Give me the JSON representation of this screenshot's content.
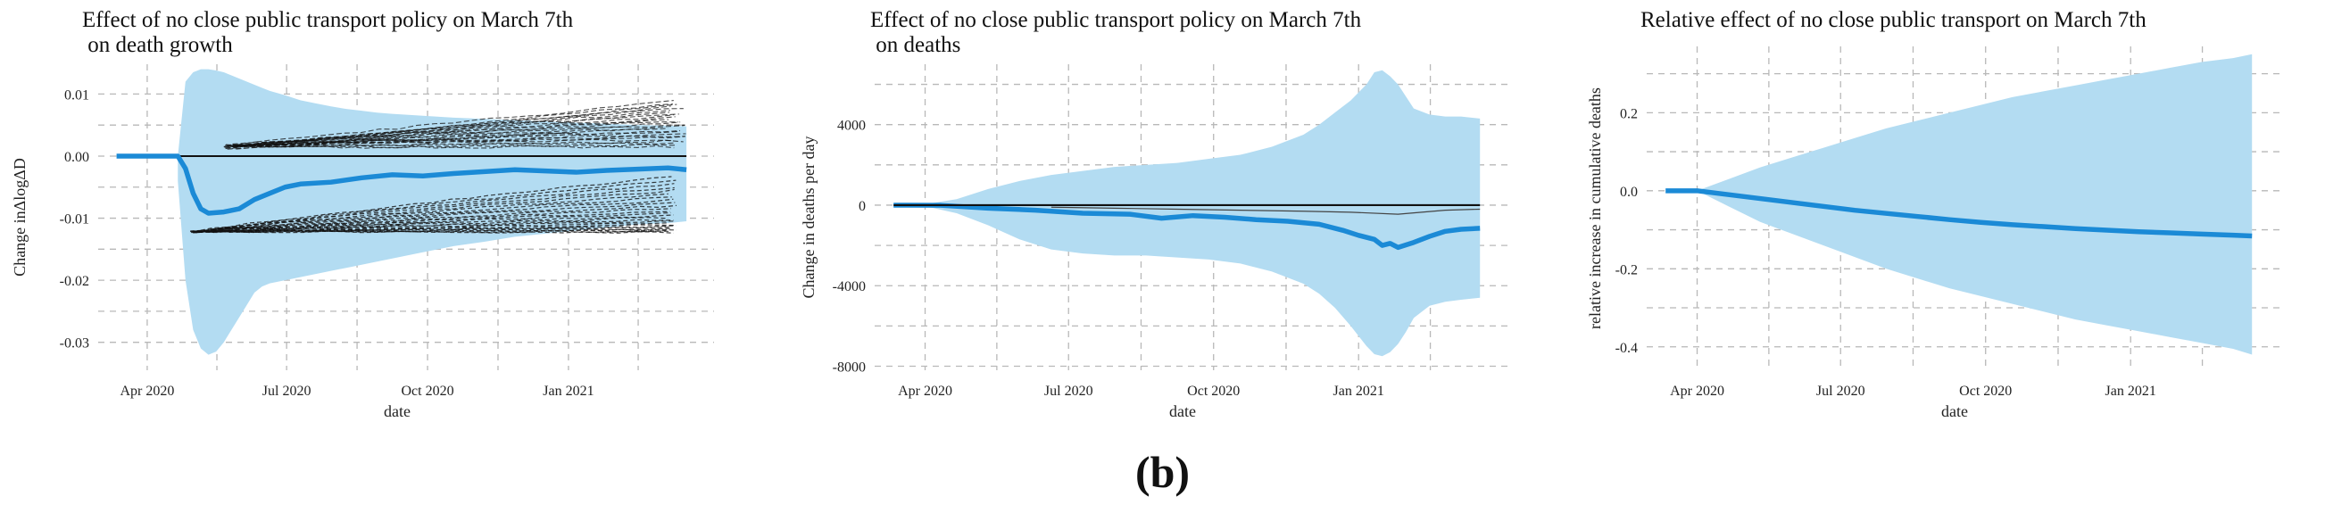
{
  "figure": {
    "panel_label": "(b)"
  },
  "colors": {
    "band": "#b3dcf2",
    "line": "#1b8ad6",
    "black": "#111111",
    "grid": "#b8b8b8"
  },
  "chart_data": [
    {
      "type": "line",
      "title_lines": [
        "Effect of no close public transport policy on March 7th",
        " on death growth"
      ],
      "xlabel": "date",
      "ylabel": "Change inΔlogΔD",
      "xlim": [
        -12,
        390
      ],
      "ylim": [
        -0.0345,
        0.0148
      ],
      "x_ticks": [
        {
          "pos": 20,
          "label": "Apr 2020"
        },
        {
          "pos": 111,
          "label": "Jul 2020"
        },
        {
          "pos": 203,
          "label": "Oct 2020"
        },
        {
          "pos": 295,
          "label": "Jan 2021"
        }
      ],
      "y_ticks": [
        {
          "pos": 0.01,
          "label": "0.01"
        },
        {
          "pos": 0.0,
          "label": "0.00"
        },
        {
          "pos": -0.01,
          "label": "-0.01"
        },
        {
          "pos": -0.02,
          "label": "-0.02"
        },
        {
          "pos": -0.03,
          "label": "-0.03"
        }
      ],
      "confidence_band": {
        "x": [
          40,
          45,
          50,
          55,
          60,
          65,
          70,
          75,
          80,
          85,
          90,
          95,
          100,
          110,
          120,
          130,
          140,
          150,
          160,
          170,
          180,
          200,
          220,
          240,
          260,
          280,
          300,
          320,
          340,
          360,
          372
        ],
        "upper": [
          0.0,
          0.012,
          0.0135,
          0.014,
          0.014,
          0.0138,
          0.0135,
          0.013,
          0.0125,
          0.012,
          0.0115,
          0.011,
          0.0105,
          0.0098,
          0.009,
          0.0085,
          0.008,
          0.0076,
          0.0073,
          0.007,
          0.0068,
          0.0065,
          0.0062,
          0.006,
          0.0058,
          0.0056,
          0.0054,
          0.0052,
          0.005,
          0.0049,
          0.0048
        ],
        "lower": [
          -0.004,
          -0.02,
          -0.028,
          -0.031,
          -0.032,
          -0.0315,
          -0.03,
          -0.028,
          -0.026,
          -0.024,
          -0.022,
          -0.021,
          -0.0205,
          -0.02,
          -0.0195,
          -0.019,
          -0.0185,
          -0.018,
          -0.0175,
          -0.017,
          -0.0165,
          -0.0155,
          -0.0145,
          -0.0138,
          -0.013,
          -0.0125,
          -0.012,
          -0.0115,
          -0.011,
          -0.0108,
          -0.0105
        ]
      },
      "simulation_paths": {
        "upper_cluster": [
          0.0015,
          0.009
        ],
        "lower_cluster": [
          -0.0125,
          -0.003
        ],
        "x_range": [
          70,
          372
        ]
      },
      "series": [
        {
          "name": "median effect",
          "x": [
            0,
            40,
            45,
            50,
            55,
            60,
            70,
            80,
            90,
            100,
            110,
            120,
            140,
            160,
            180,
            200,
            220,
            240,
            260,
            280,
            300,
            320,
            340,
            360,
            372
          ],
          "y": [
            0.0,
            0.0,
            -0.002,
            -0.006,
            -0.0085,
            -0.0092,
            -0.009,
            -0.0085,
            -0.007,
            -0.006,
            -0.005,
            -0.0045,
            -0.0042,
            -0.0035,
            -0.003,
            -0.0032,
            -0.0028,
            -0.0025,
            -0.0022,
            -0.0024,
            -0.0026,
            -0.0023,
            -0.0021,
            -0.0019,
            -0.0022
          ]
        }
      ]
    },
    {
      "type": "line",
      "title_lines": [
        "Effect of no close public transport policy on March 7th",
        " on deaths"
      ],
      "xlabel": "date",
      "ylabel": "Change in deaths per day",
      "xlim": [
        -12,
        390
      ],
      "ylim": [
        -8200,
        7000
      ],
      "x_ticks": [
        {
          "pos": 20,
          "label": "Apr 2020"
        },
        {
          "pos": 111,
          "label": "Jul 2020"
        },
        {
          "pos": 203,
          "label": "Oct 2020"
        },
        {
          "pos": 295,
          "label": "Jan 2021"
        }
      ],
      "y_ticks": [
        {
          "pos": 4000,
          "label": "4000"
        },
        {
          "pos": 0,
          "label": "0"
        },
        {
          "pos": -4000,
          "label": "-4000"
        },
        {
          "pos": -8000,
          "label": "-8000"
        }
      ],
      "confidence_band": {
        "x": [
          0,
          20,
          40,
          60,
          80,
          100,
          120,
          140,
          160,
          180,
          200,
          220,
          240,
          260,
          270,
          280,
          290,
          300,
          305,
          310,
          315,
          320,
          325,
          330,
          340,
          350,
          360,
          372
        ],
        "upper": [
          0,
          50,
          300,
          800,
          1200,
          1500,
          1700,
          1900,
          2000,
          2100,
          2300,
          2500,
          2900,
          3500,
          4000,
          4600,
          5200,
          6000,
          6600,
          6700,
          6400,
          6000,
          5400,
          4800,
          4500,
          4400,
          4400,
          4300
        ],
        "lower": [
          0,
          -50,
          -400,
          -1000,
          -1700,
          -2200,
          -2400,
          -2500,
          -2500,
          -2600,
          -2700,
          -2900,
          -3300,
          -3900,
          -4400,
          -5100,
          -6000,
          -7000,
          -7400,
          -7500,
          -7300,
          -6900,
          -6300,
          -5600,
          -5000,
          -4800,
          -4700,
          -4600
        ]
      },
      "series": [
        {
          "name": "median effect",
          "x": [
            0,
            30,
            60,
            90,
            120,
            150,
            170,
            190,
            210,
            230,
            250,
            270,
            285,
            295,
            305,
            310,
            315,
            320,
            330,
            340,
            350,
            360,
            372
          ],
          "y": [
            0,
            -10,
            -150,
            -250,
            -400,
            -450,
            -650,
            -520,
            -600,
            -720,
            -800,
            -950,
            -1250,
            -1500,
            -1700,
            -2000,
            -1900,
            -2100,
            -1850,
            -1550,
            -1300,
            -1200,
            -1150
          ]
        },
        {
          "name": "zero reference",
          "x": [
            0,
            372
          ],
          "y": [
            0,
            0
          ]
        },
        {
          "name": "thin path",
          "x": [
            100,
            140,
            180,
            220,
            260,
            290,
            320,
            350,
            372
          ],
          "y": [
            -100,
            -150,
            -200,
            -250,
            -300,
            -350,
            -450,
            -250,
            -200
          ]
        }
      ]
    },
    {
      "type": "line",
      "title_lines": [
        "Relative effect of no close public transport on March 7th"
      ],
      "xlabel": "date",
      "ylabel": "relative increase in cumulative deaths",
      "xlim": [
        -12,
        390
      ],
      "ylim": [
        -0.46,
        0.37
      ],
      "x_ticks": [
        {
          "pos": 20,
          "label": "Apr 2020"
        },
        {
          "pos": 111,
          "label": "Jul 2020"
        },
        {
          "pos": 203,
          "label": "Oct 2020"
        },
        {
          "pos": 295,
          "label": "Jan 2021"
        }
      ],
      "y_ticks": [
        {
          "pos": 0.2,
          "label": "0.2"
        },
        {
          "pos": 0.0,
          "label": "0.0"
        },
        {
          "pos": -0.2,
          "label": "-0.2"
        },
        {
          "pos": -0.4,
          "label": "-0.4"
        }
      ],
      "confidence_band": {
        "x": [
          20,
          40,
          60,
          80,
          100,
          120,
          140,
          160,
          180,
          200,
          220,
          240,
          260,
          280,
          300,
          320,
          340,
          360,
          372
        ],
        "upper": [
          0.0,
          0.03,
          0.06,
          0.085,
          0.11,
          0.135,
          0.16,
          0.18,
          0.2,
          0.22,
          0.24,
          0.255,
          0.27,
          0.285,
          0.3,
          0.315,
          0.33,
          0.34,
          0.35
        ],
        "lower": [
          0.0,
          -0.04,
          -0.08,
          -0.11,
          -0.14,
          -0.17,
          -0.2,
          -0.225,
          -0.25,
          -0.27,
          -0.29,
          -0.31,
          -0.33,
          -0.345,
          -0.36,
          -0.375,
          -0.39,
          -0.405,
          -0.42
        ]
      },
      "series": [
        {
          "name": "median effect",
          "x": [
            0,
            20,
            40,
            60,
            80,
            100,
            120,
            140,
            160,
            180,
            200,
            220,
            240,
            260,
            280,
            300,
            320,
            340,
            360,
            372
          ],
          "y": [
            0.0,
            0.0,
            -0.01,
            -0.02,
            -0.03,
            -0.04,
            -0.05,
            -0.058,
            -0.066,
            -0.074,
            -0.081,
            -0.087,
            -0.092,
            -0.097,
            -0.101,
            -0.105,
            -0.108,
            -0.111,
            -0.114,
            -0.116
          ]
        }
      ]
    }
  ]
}
